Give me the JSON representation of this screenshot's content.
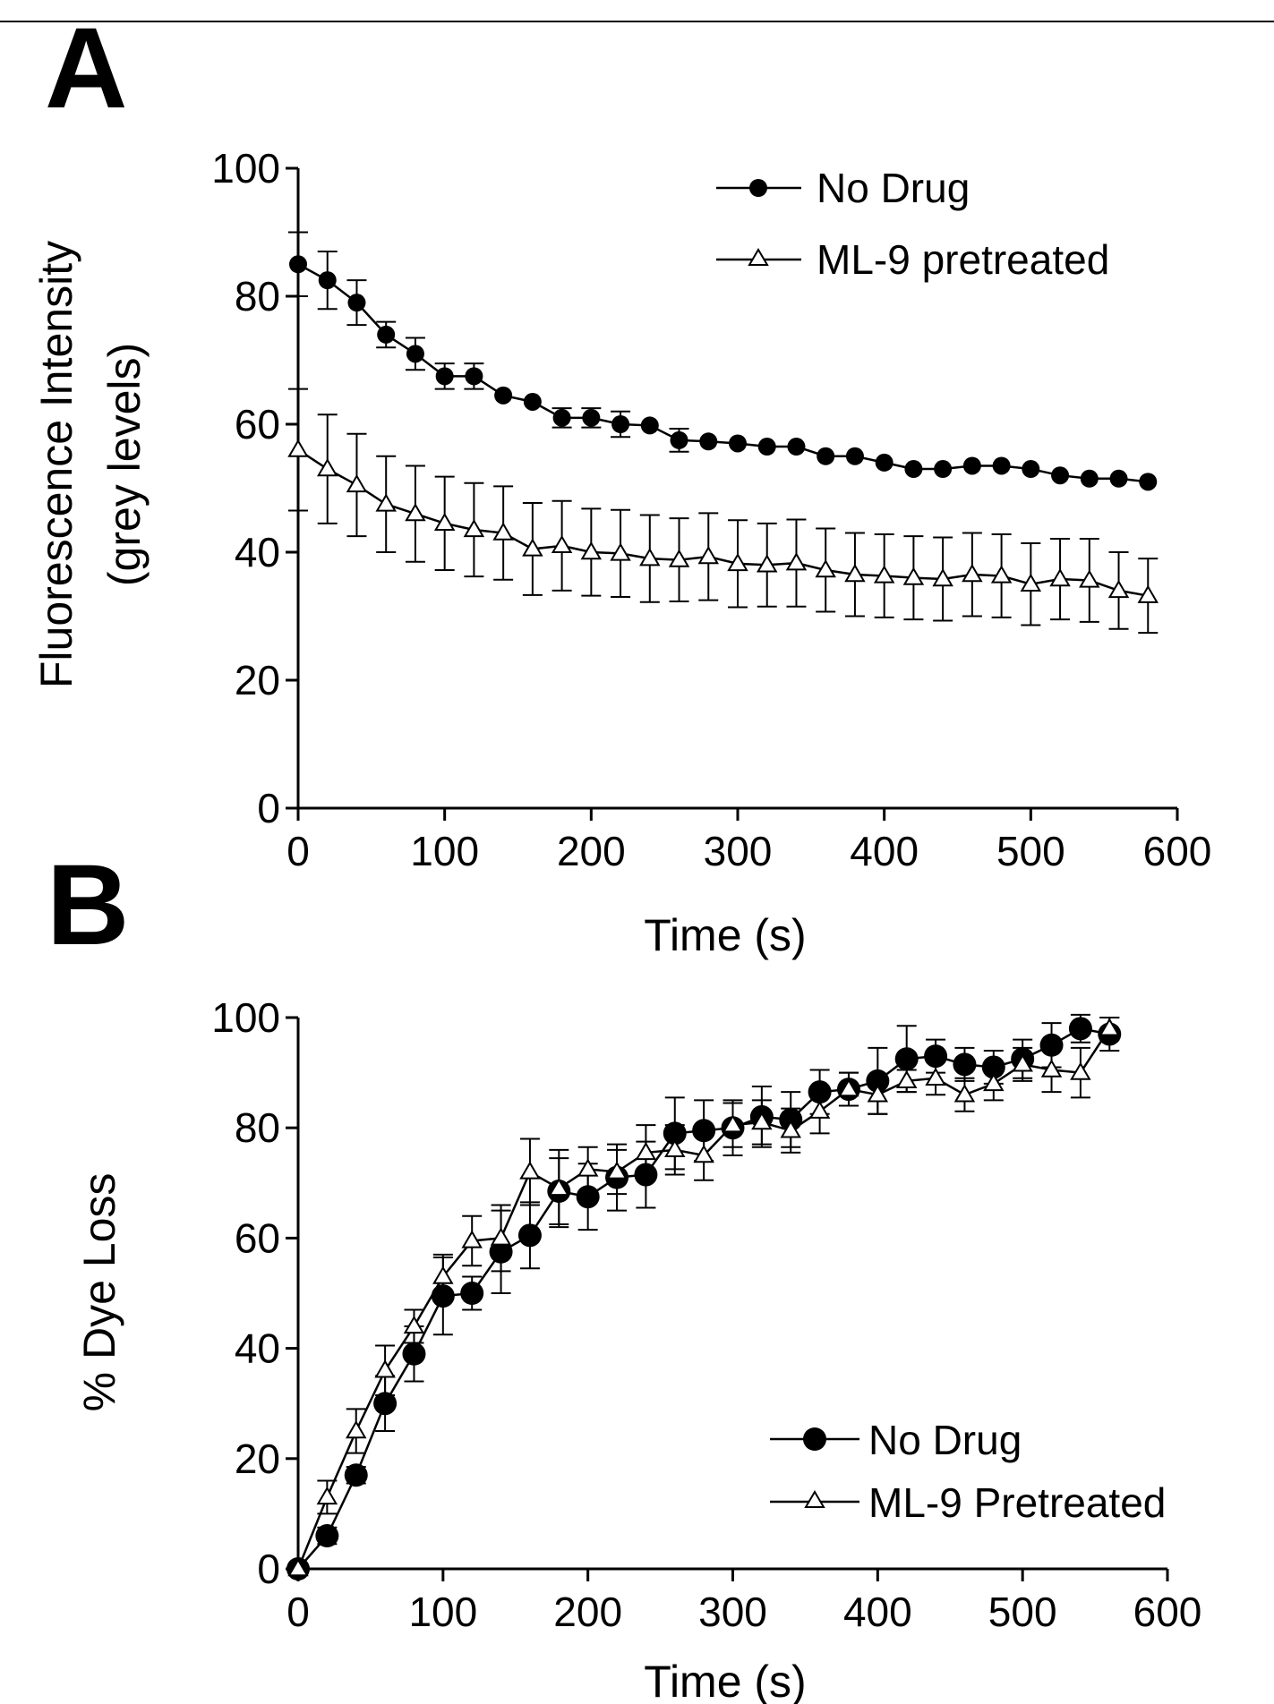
{
  "figure": {
    "panels": [
      "A",
      "B"
    ]
  },
  "colors": {
    "ink": "#000000",
    "background": "#ffffff",
    "open_marker_fill": "#ffffff"
  },
  "chart_data": [
    {
      "panel": "A",
      "type": "line",
      "xlabel": "Time (s)",
      "ylabel_line1": "Fluorescence Intensity",
      "ylabel_line2": "(grey levels)",
      "xlim": [
        0,
        600
      ],
      "ylim": [
        0,
        100
      ],
      "xticks": [
        "0",
        "100",
        "200",
        "300",
        "400",
        "500",
        "600"
      ],
      "yticks": [
        "0",
        "20",
        "40",
        "60",
        "80",
        "100"
      ],
      "legend_position": "top-right",
      "x": [
        0,
        20,
        40,
        60,
        80,
        100,
        120,
        140,
        160,
        180,
        200,
        220,
        240,
        260,
        280,
        300,
        320,
        340,
        360,
        380,
        400,
        420,
        440,
        460,
        480,
        500,
        520,
        540,
        560,
        580
      ],
      "series": [
        {
          "name": "No Drug",
          "marker": "filled-circle",
          "values": [
            85,
            82.5,
            79,
            74,
            71,
            67.5,
            67.5,
            64.5,
            63.5,
            61,
            61,
            60,
            59.8,
            57.5,
            57.3,
            57,
            56.5,
            56.5,
            55,
            55,
            54,
            53,
            53,
            53.5,
            53.5,
            53,
            52,
            51.5,
            51.5,
            51
          ],
          "errors": [
            5,
            4.5,
            3.5,
            2,
            2.5,
            2,
            2,
            0,
            0,
            1.5,
            1.5,
            2,
            0,
            1.8,
            0,
            0,
            0,
            0,
            0,
            0,
            0,
            0,
            0,
            0,
            0,
            0,
            0,
            0,
            0,
            0
          ]
        },
        {
          "name": "ML-9 pretreated",
          "marker": "open-triangle",
          "values": [
            56,
            53,
            50.5,
            47.5,
            46,
            44.5,
            43.5,
            43,
            40.5,
            41,
            40,
            39.8,
            39,
            38.8,
            39.3,
            38.2,
            38,
            38.3,
            37.2,
            36.5,
            36.3,
            36,
            35.8,
            36.5,
            36.3,
            35,
            35.8,
            35.6,
            34,
            33.2
          ],
          "errors": [
            9.5,
            8.5,
            8,
            7.5,
            7.5,
            7.3,
            7.3,
            7.3,
            7.2,
            7,
            6.8,
            6.8,
            6.8,
            6.5,
            6.8,
            6.8,
            6.5,
            6.8,
            6.5,
            6.5,
            6.5,
            6.5,
            6.5,
            6.5,
            6.5,
            6.4,
            6.3,
            6.5,
            6,
            5.8
          ]
        }
      ]
    },
    {
      "panel": "B",
      "type": "line",
      "xlabel": "Time (s)",
      "ylabel": "% Dye Loss",
      "xlim": [
        0,
        600
      ],
      "ylim": [
        0,
        100
      ],
      "xticks": [
        "0",
        "100",
        "200",
        "300",
        "400",
        "500",
        "600"
      ],
      "yticks": [
        "0",
        "20",
        "40",
        "60",
        "80",
        "100"
      ],
      "legend_position": "bottom-right",
      "x": [
        0,
        20,
        40,
        60,
        80,
        100,
        120,
        140,
        160,
        180,
        200,
        220,
        240,
        260,
        280,
        300,
        320,
        340,
        360,
        380,
        400,
        420,
        440,
        460,
        480,
        500,
        520,
        540,
        560
      ],
      "series": [
        {
          "name": "No Drug",
          "marker": "filled-circle",
          "values": [
            0,
            6,
            17,
            30,
            39,
            49.5,
            50,
            57.5,
            60.5,
            68.5,
            67.5,
            71,
            71.5,
            79,
            79.5,
            80,
            82,
            81.5,
            86.5,
            87,
            88.5,
            92.5,
            93,
            91.5,
            91,
            92.5,
            95,
            98,
            97
          ],
          "errors": [
            0,
            1.5,
            1.5,
            5,
            5,
            7,
            3,
            7.5,
            6,
            6,
            6,
            6,
            6,
            6.5,
            5.5,
            5,
            5.5,
            5,
            4,
            3,
            6,
            6,
            3,
            3,
            3,
            3.5,
            4,
            2.5,
            3
          ]
        },
        {
          "name": "ML-9 Pretreated",
          "marker": "open-triangle",
          "values": [
            0,
            13,
            25,
            36,
            44,
            53,
            59.5,
            60,
            72,
            69,
            72.5,
            72,
            75.5,
            76,
            75,
            80.5,
            81,
            79.5,
            83,
            87,
            86,
            88.5,
            89,
            86,
            88,
            91.5,
            90.5,
            90,
            98
          ],
          "errors": [
            0,
            3,
            4,
            4.5,
            3,
            4,
            4.5,
            6,
            6,
            7,
            4,
            4,
            5,
            4.5,
            4.5,
            4,
            4,
            4,
            4,
            3,
            3.5,
            2,
            3,
            3,
            3,
            3,
            4,
            4.5,
            2
          ]
        }
      ]
    }
  ]
}
